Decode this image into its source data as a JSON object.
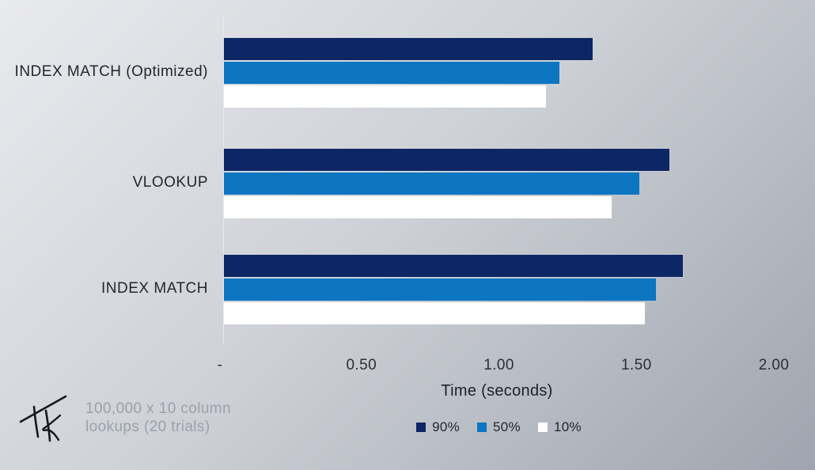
{
  "colors": {
    "background_top_left": "#e9eaee",
    "background_bottom_right": "#9fa4ae",
    "series_90": "#0d2765",
    "series_50": "#0c76c2",
    "series_10": "#ffffff",
    "text_dark": "#23262d",
    "caption_gray": "#9ba1a9",
    "axis_line": "#e8eaed"
  },
  "chart_data": {
    "type": "bar",
    "orientation": "horizontal",
    "categories": [
      "INDEX MATCH (Optimized)",
      "VLOOKUP",
      "INDEX MATCH"
    ],
    "series": [
      {
        "name": "90%",
        "color": "#0d2765",
        "values": [
          1.34,
          1.62,
          1.67
        ]
      },
      {
        "name": "50%",
        "color": "#0c76c2",
        "values": [
          1.22,
          1.51,
          1.57
        ]
      },
      {
        "name": "10%",
        "color": "#ffffff",
        "values": [
          1.17,
          1.41,
          1.53
        ]
      }
    ],
    "xlabel": "Time (seconds)",
    "xlim": [
      0,
      2
    ],
    "x_ticks": [
      {
        "value": 0,
        "label": "-"
      },
      {
        "value": 0.5,
        "label": "0.50"
      },
      {
        "value": 1,
        "label": "1.00"
      },
      {
        "value": 1.5,
        "label": "1.50"
      },
      {
        "value": 2,
        "label": "2.00"
      }
    ],
    "legend_position": "bottom-center",
    "grid": false
  },
  "caption": {
    "line1": "100,000 x 10 column",
    "line2": "lookups (20 trials)"
  },
  "signature": {
    "label": "Tk"
  }
}
